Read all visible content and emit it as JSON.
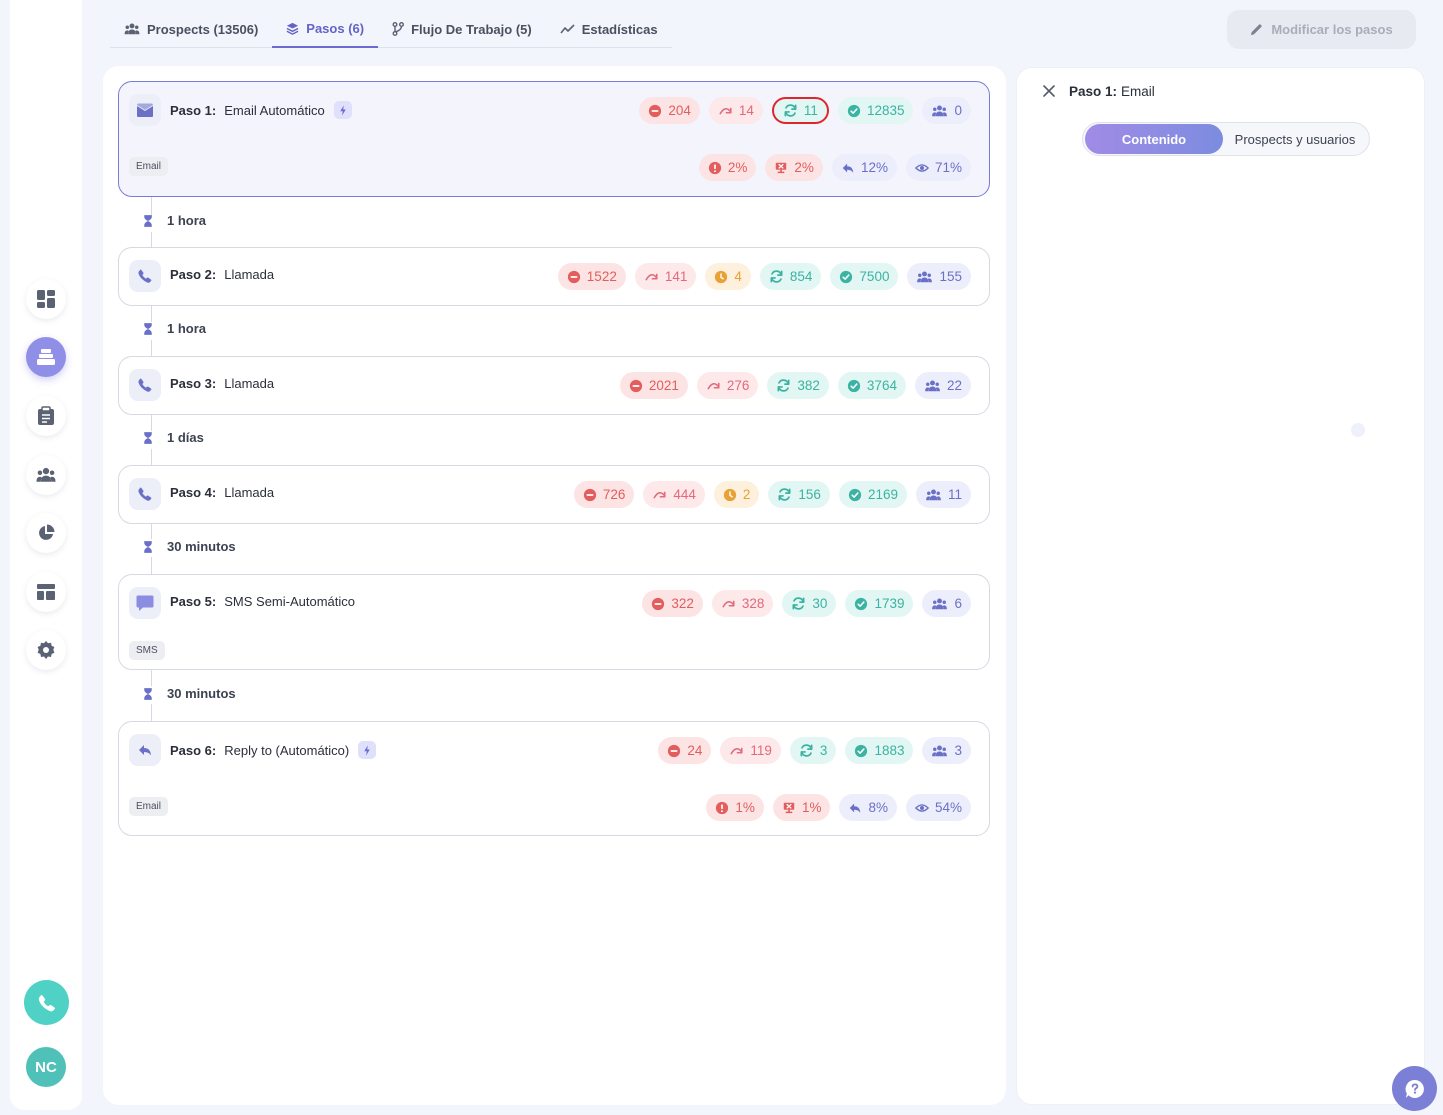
{
  "tabs": [
    {
      "label": "Prospects (13506)",
      "icon": "users-icon"
    },
    {
      "label": "Pasos (6)",
      "icon": "layers-icon",
      "active": true
    },
    {
      "label": "Flujo De Trabajo (5)",
      "icon": "branch-icon"
    },
    {
      "label": "Estadísticas",
      "icon": "trend-icon"
    }
  ],
  "modify_label": "Modificar los pasos",
  "sidebar": {
    "items": [
      "dashboard-icon",
      "sequences-icon",
      "tasks-icon",
      "contacts-icon",
      "reports-icon",
      "templates-icon",
      "settings-icon"
    ],
    "avatar": "NC"
  },
  "steps": [
    {
      "step": "Paso 1:",
      "name": "Email Automático",
      "tag": "Email",
      "s": [
        "204",
        "14",
        "11",
        "12835",
        "0"
      ],
      "p": [
        "2%",
        "2%",
        "12%",
        "71%"
      ]
    },
    {
      "step": "Paso 2:",
      "name": "Llamada",
      "s": [
        "1522",
        "141",
        "4",
        "854",
        "7500",
        "155"
      ]
    },
    {
      "step": "Paso 3:",
      "name": "Llamada",
      "s": [
        "2021",
        "276",
        "382",
        "3764",
        "22"
      ]
    },
    {
      "step": "Paso 4:",
      "name": "Llamada",
      "s": [
        "726",
        "444",
        "2",
        "156",
        "2169",
        "11"
      ]
    },
    {
      "step": "Paso 5:",
      "name": "SMS Semi-Automático",
      "tag": "SMS",
      "s": [
        "322",
        "328",
        "30",
        "1739",
        "6"
      ]
    },
    {
      "step": "Paso 6:",
      "name": "Reply to (Automático)",
      "tag": "Email",
      "s": [
        "24",
        "119",
        "3",
        "1883",
        "3"
      ],
      "p": [
        "1%",
        "1%",
        "8%",
        "54%"
      ]
    }
  ],
  "delays": [
    "1 hora",
    "1 hora",
    "1 días",
    "30 minutos",
    "30 minutos"
  ],
  "panel": {
    "step": "Paso 1:",
    "name": "Email",
    "toggle": [
      "Contenido",
      "Prospects y usuarios"
    ]
  },
  "colors": {
    "accent": "#6b6bd0",
    "teal": "#3bb3a3",
    "red": "#e35d5d",
    "orange": "#e8a135"
  }
}
